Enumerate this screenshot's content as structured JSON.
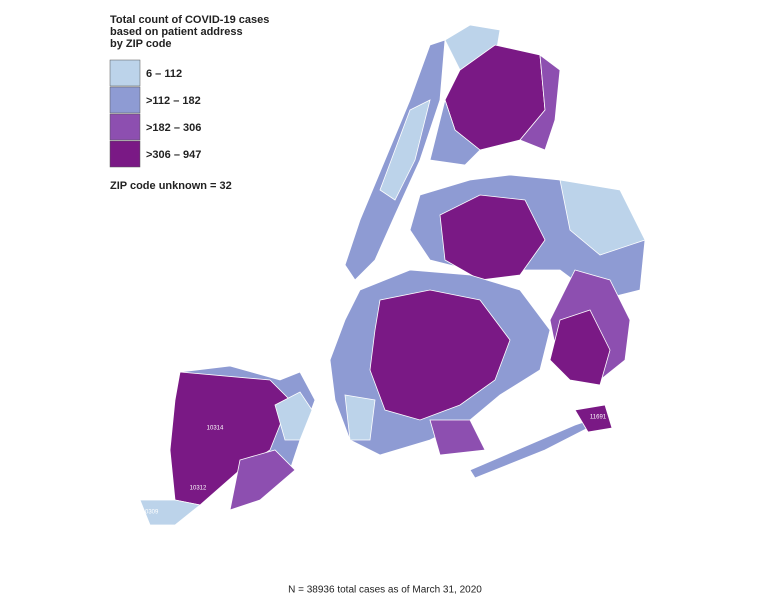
{
  "legend": {
    "title_lines": [
      "Total count of COVID-19 cases",
      "based on patient address",
      "by ZIP code"
    ],
    "items": [
      {
        "label": "6 – 112",
        "color": "#bcd3ea"
      },
      {
        "label": ">112 – 182",
        "color": "#8e9bd3"
      },
      {
        "label": ">182 – 306",
        "color": "#8d4fb0"
      },
      {
        "label": ">306 – 947",
        "color": "#7a1985"
      }
    ],
    "note": "ZIP code unknown = 32"
  },
  "zip_labels": [
    "10314",
    "10312",
    "10309",
    "11691"
  ],
  "footer": "N = 38936 total cases as of March 31, 2020"
}
